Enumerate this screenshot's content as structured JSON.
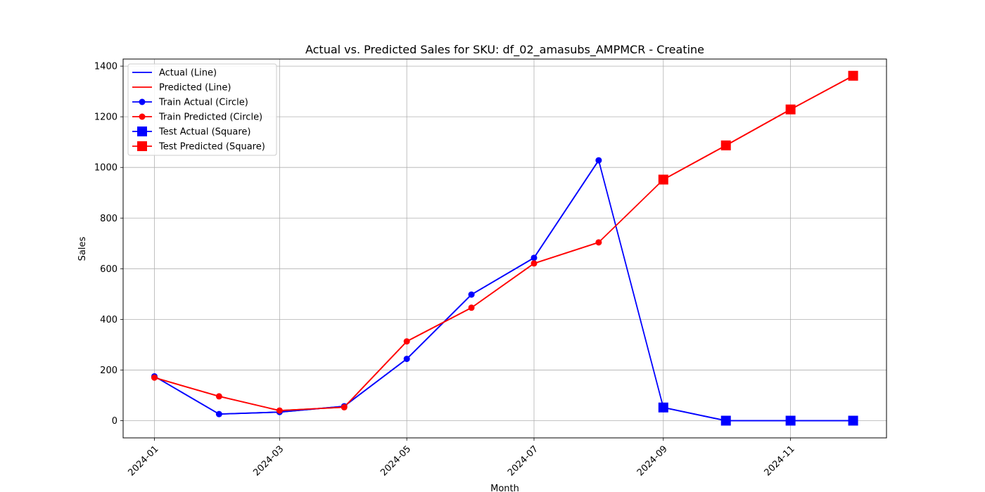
{
  "chart_data": {
    "type": "line",
    "title": "Actual vs. Predicted Sales for SKU: df_02_amasubs_AMPMCR - Creatine",
    "xlabel": "Month",
    "ylabel": "Sales",
    "x": [
      "2024-01-01",
      "2024-02-01",
      "2024-03-01",
      "2024-04-01",
      "2024-05-01",
      "2024-06-01",
      "2024-07-01",
      "2024-08-01",
      "2024-09-01",
      "2024-10-01",
      "2024-11-01",
      "2024-12-01"
    ],
    "xlim": [
      "2023-12-17",
      "2024-12-17"
    ],
    "ylim": [
      -68,
      1428
    ],
    "x_ticks": [
      "2024-01",
      "2024-03",
      "2024-05",
      "2024-07",
      "2024-09",
      "2024-11"
    ],
    "y_ticks": [
      0,
      200,
      400,
      600,
      800,
      1000,
      1200,
      1400
    ],
    "grid": true,
    "legend_position": "upper left",
    "series": [
      {
        "name": "Actual (Line)",
        "color": "#0000ff",
        "marker": "none",
        "x": [
          "2024-01-01",
          "2024-02-01",
          "2024-03-01",
          "2024-04-01",
          "2024-05-01",
          "2024-06-01",
          "2024-07-01",
          "2024-08-01",
          "2024-09-01",
          "2024-10-01",
          "2024-11-01",
          "2024-12-01"
        ],
        "values": [
          175,
          26,
          34,
          57,
          244,
          498,
          643,
          1028,
          52,
          0,
          0,
          0
        ]
      },
      {
        "name": "Predicted (Line)",
        "color": "#ff0000",
        "marker": "none",
        "x": [
          "2024-01-01",
          "2024-02-01",
          "2024-03-01",
          "2024-04-01",
          "2024-05-01",
          "2024-06-01",
          "2024-07-01",
          "2024-08-01",
          "2024-09-01",
          "2024-10-01",
          "2024-11-01",
          "2024-12-01"
        ],
        "values": [
          170,
          96,
          40,
          53,
          313,
          446,
          621,
          704,
          952,
          1087,
          1229,
          1362
        ]
      },
      {
        "name": "Train Actual (Circle)",
        "color": "#0000ff",
        "marker": "circle",
        "x": [
          "2024-01-01",
          "2024-02-01",
          "2024-03-01",
          "2024-04-01",
          "2024-05-01",
          "2024-06-01",
          "2024-07-01",
          "2024-08-01"
        ],
        "values": [
          175,
          26,
          34,
          57,
          244,
          498,
          643,
          1028
        ]
      },
      {
        "name": "Train Predicted (Circle)",
        "color": "#ff0000",
        "marker": "circle",
        "x": [
          "2024-01-01",
          "2024-02-01",
          "2024-03-01",
          "2024-04-01",
          "2024-05-01",
          "2024-06-01",
          "2024-07-01",
          "2024-08-01"
        ],
        "values": [
          170,
          96,
          40,
          53,
          313,
          446,
          621,
          704
        ]
      },
      {
        "name": "Test Actual (Square)",
        "color": "#0000ff",
        "marker": "square",
        "x": [
          "2024-09-01",
          "2024-10-01",
          "2024-11-01",
          "2024-12-01"
        ],
        "values": [
          52,
          0,
          0,
          0
        ]
      },
      {
        "name": "Test Predicted (Square)",
        "color": "#ff0000",
        "marker": "square",
        "x": [
          "2024-09-01",
          "2024-10-01",
          "2024-11-01",
          "2024-12-01"
        ],
        "values": [
          952,
          1087,
          1229,
          1362
        ]
      }
    ]
  }
}
